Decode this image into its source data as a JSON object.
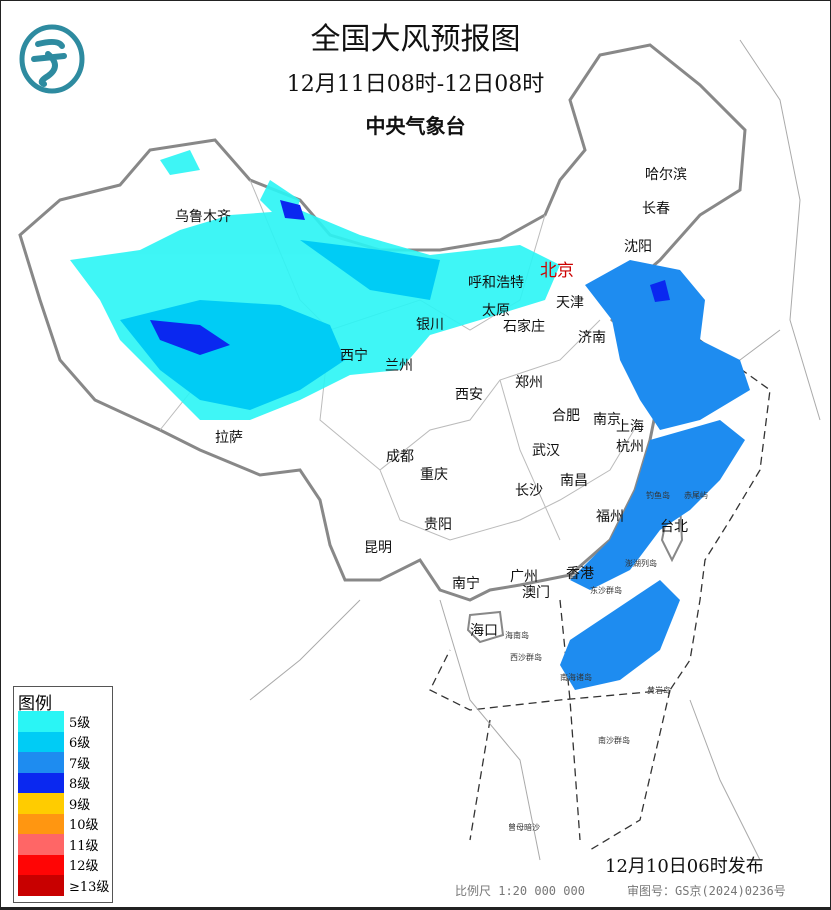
{
  "header": {
    "title": "全国大风预报图",
    "period": "12月11日08时-12日08时",
    "issuer": "中央气象台"
  },
  "legend": {
    "title": "图例",
    "items": [
      {
        "label": "5级",
        "color": "#2af5f5"
      },
      {
        "label": "6级",
        "color": "#00ccf5"
      },
      {
        "label": "7级",
        "color": "#1e8cf0"
      },
      {
        "label": "8级",
        "color": "#0a28f0"
      },
      {
        "label": "9级",
        "color": "#ffcc00"
      },
      {
        "label": "10级",
        "color": "#ff9611"
      },
      {
        "label": "11级",
        "color": "#ff6666"
      },
      {
        "label": "12级",
        "color": "#ff0505"
      },
      {
        "label": "≥13级",
        "color": "#c80000"
      }
    ]
  },
  "cities": [
    "乌鲁木齐",
    "哈尔滨",
    "长春",
    "沈阳",
    "北京",
    "呼和浩特",
    "天津",
    "太原",
    "石家庄",
    "银川",
    "济南",
    "西宁",
    "兰州",
    "郑州",
    "西安",
    "合肥",
    "南京",
    "上海",
    "拉萨",
    "杭州",
    "武汉",
    "成都",
    "重庆",
    "南昌",
    "长沙",
    "福州",
    "台北",
    "贵阳",
    "昆明",
    "南宁",
    "广州",
    "香港",
    "澳门",
    "海口"
  ],
  "islands": [
    "钓鱼岛",
    "赤尾屿",
    "东沙群岛",
    "西沙群岛",
    "南海诸岛",
    "黄岩岛",
    "南沙群岛",
    "曾母暗沙",
    "澎湖列岛",
    "海南岛"
  ],
  "footer": {
    "issued": "12月10日06时发布",
    "scale": "比例尺 1:20 000 000",
    "review": "审图号：GS京(2024)0236号"
  },
  "colors": {
    "border": "#888888",
    "coast": "#999999",
    "capital": "#cc0000",
    "logo": "#2e8ba0"
  }
}
